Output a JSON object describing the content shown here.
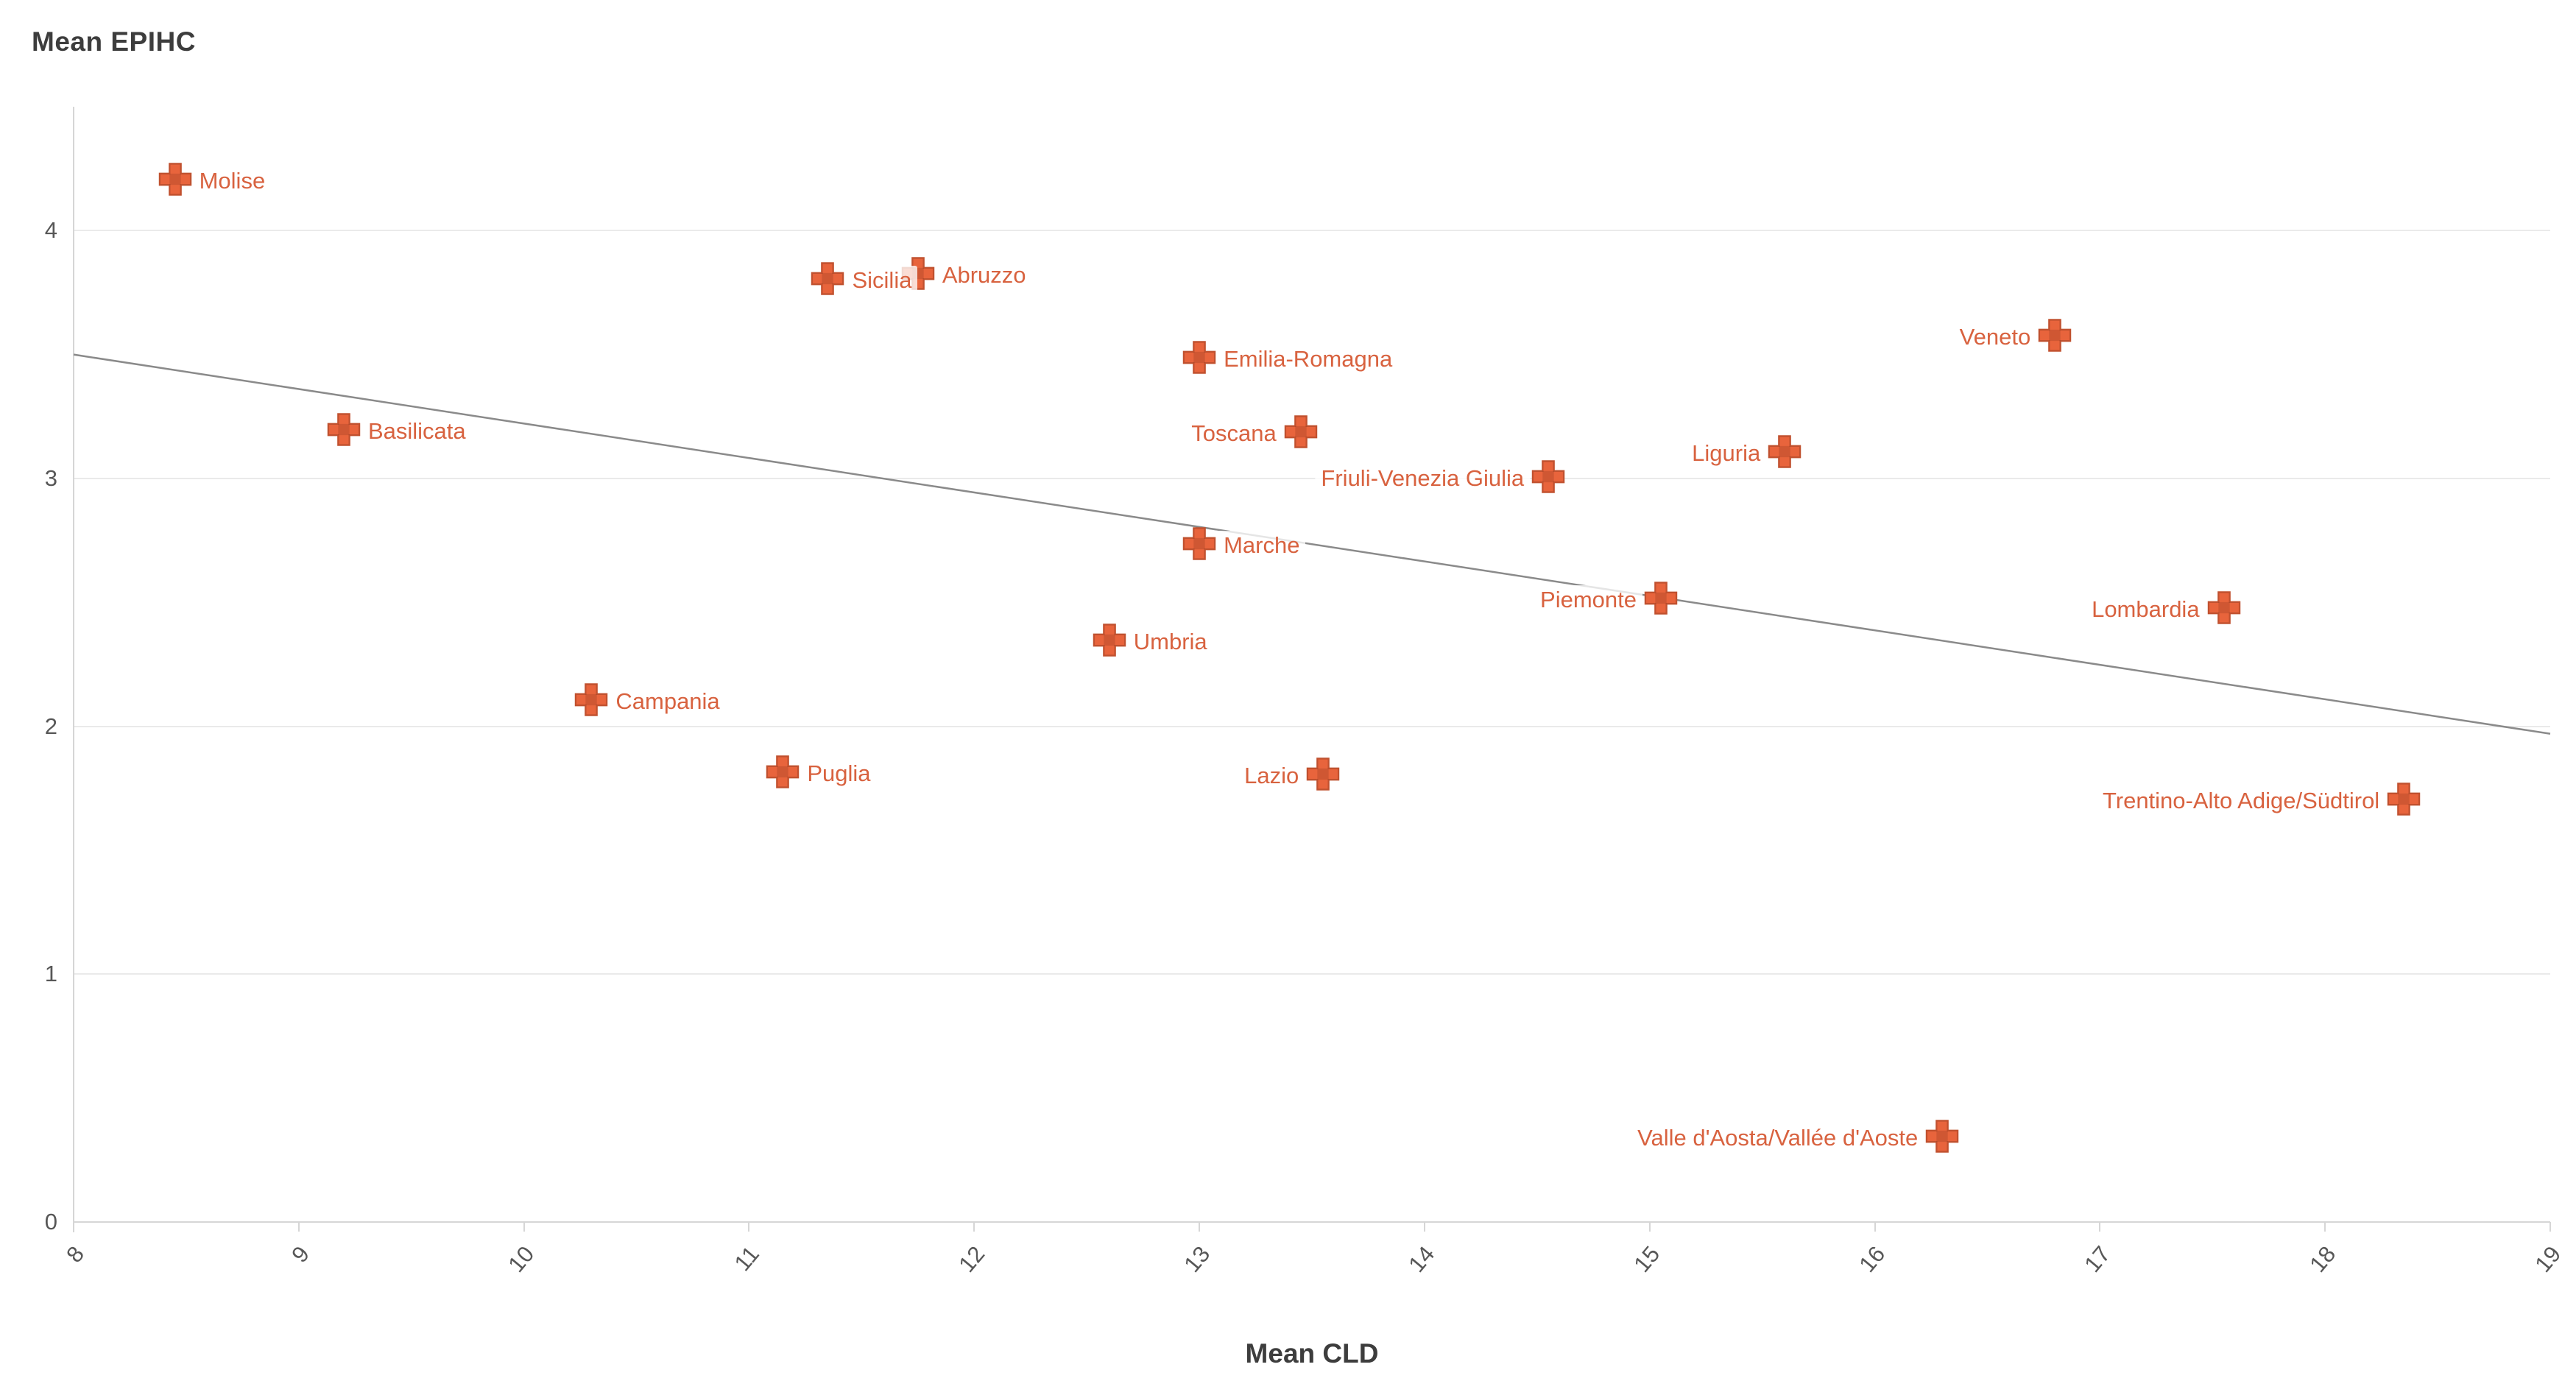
{
  "title": "Mean EPIHC",
  "x_axis_title": "Mean CLD",
  "colors": {
    "background": "#ffffff",
    "title_text": "#3d3d3d",
    "tick_text": "#575757",
    "gridline": "#eaeaea",
    "axis_line": "#d6d6d6",
    "marker_fill": "#e8643c",
    "marker_edge": "#c0512f",
    "marker_center": "rgba(110,35,15,0.20)",
    "point_label_text": "#d8623f",
    "trend_line": "#8a8a8a"
  },
  "chart_data": {
    "type": "scatter",
    "title": "Mean EPIHC vs Mean CLD by Italian region",
    "xlabel": "Mean CLD",
    "ylabel": "Mean EPIHC",
    "marker_shape": "plus",
    "xlim": [
      8,
      19
    ],
    "ylim": [
      0,
      4.5
    ],
    "x_ticks": [
      8,
      9,
      10,
      11,
      12,
      13,
      14,
      15,
      16,
      17,
      18,
      19
    ],
    "y_ticks": [
      0,
      1,
      2,
      3,
      4
    ],
    "grid": "horizontal",
    "trendline": {
      "x1": 8,
      "y1": 3.5,
      "x2": 19,
      "y2": 1.97
    },
    "points": [
      {
        "name": "Abruzzo",
        "x": 11.75,
        "y": 3.82,
        "label_side": "right"
      },
      {
        "name": "Sicilia",
        "x": 11.35,
        "y": 3.8,
        "label_side": "right"
      },
      {
        "name": "Molise",
        "x": 8.45,
        "y": 4.2,
        "label_side": "right"
      },
      {
        "name": "Emilia-Romagna",
        "x": 13.0,
        "y": 3.48,
        "label_side": "right"
      },
      {
        "name": "Veneto",
        "x": 16.8,
        "y": 3.57,
        "label_side": "left"
      },
      {
        "name": "Basilicata",
        "x": 9.2,
        "y": 3.19,
        "label_side": "right"
      },
      {
        "name": "Toscana",
        "x": 13.45,
        "y": 3.18,
        "label_side": "left"
      },
      {
        "name": "Liguria",
        "x": 15.6,
        "y": 3.1,
        "label_side": "left"
      },
      {
        "name": "Friuli-Venezia Giulia",
        "x": 14.55,
        "y": 3.0,
        "label_side": "left"
      },
      {
        "name": "Marche",
        "x": 13.0,
        "y": 2.73,
        "label_side": "right"
      },
      {
        "name": "Piemonte",
        "x": 15.05,
        "y": 2.51,
        "label_side": "left"
      },
      {
        "name": "Lombardia",
        "x": 17.55,
        "y": 2.47,
        "label_side": "left"
      },
      {
        "name": "Umbria",
        "x": 12.6,
        "y": 2.34,
        "label_side": "right"
      },
      {
        "name": "Campania",
        "x": 10.3,
        "y": 2.1,
        "label_side": "right"
      },
      {
        "name": "Puglia",
        "x": 11.15,
        "y": 1.81,
        "label_side": "right"
      },
      {
        "name": "Lazio",
        "x": 13.55,
        "y": 1.8,
        "label_side": "left"
      },
      {
        "name": "Trentino-Alto Adige/Südtirol",
        "x": 18.35,
        "y": 1.7,
        "label_side": "left"
      },
      {
        "name": "Valle d'Aosta/Vallée d'Aoste",
        "x": 16.3,
        "y": 0.34,
        "label_side": "left"
      }
    ]
  }
}
